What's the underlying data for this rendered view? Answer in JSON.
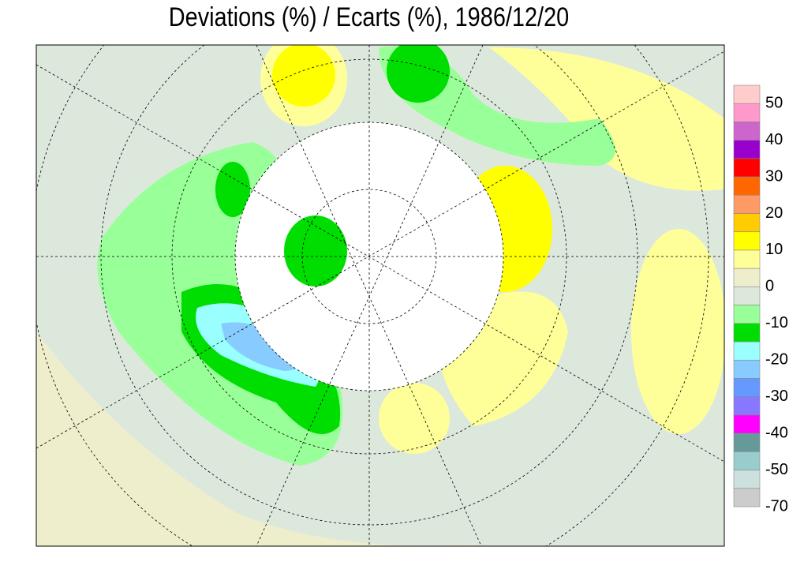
{
  "header": {
    "title": "Deviations (%) / Ecarts (%), 1986/12/20"
  },
  "legend": {
    "colors": [
      "#ffcccc",
      "#ff99cc",
      "#cc66cc",
      "#9900cc",
      "#ff0000",
      "#ff6600",
      "#ff9966",
      "#ffcc00",
      "#ffff00",
      "#ffff99",
      "#eeeecc",
      "#dde8dd",
      "#99ff99",
      "#00dd00",
      "#99ffff",
      "#88ccff",
      "#6699ff",
      "#8877ff",
      "#ff00ff",
      "#669999",
      "#99cccc",
      "#cce0dd",
      "#cccccc"
    ],
    "labels": [
      "50",
      "40",
      "30",
      "20",
      "10",
      "0",
      "-10",
      "-20",
      "-30",
      "-40",
      "-50",
      "-70"
    ]
  }
}
